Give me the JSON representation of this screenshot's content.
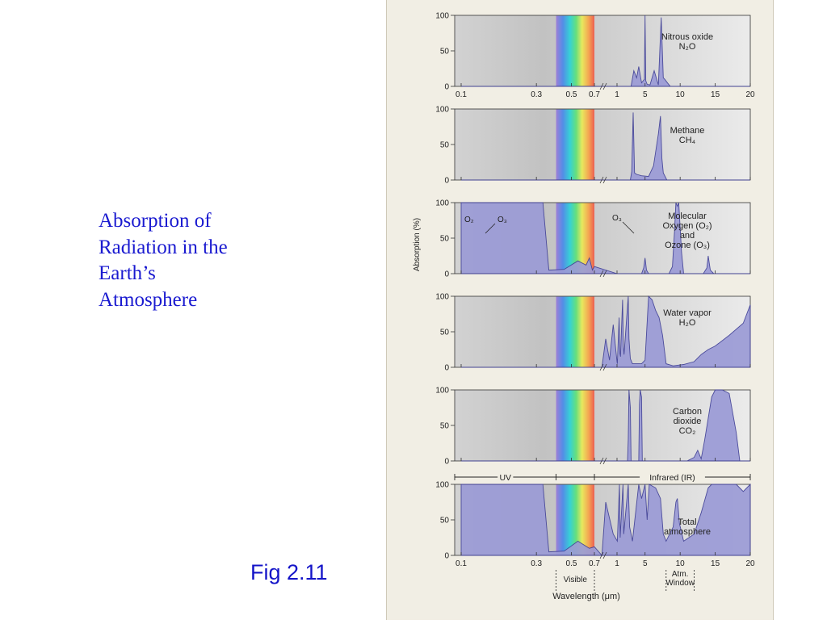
{
  "slide": {
    "title_lines": [
      "Absorption of",
      "Radiation in the",
      "Earth’s",
      "Atmosphere"
    ],
    "figure_label": "Fig 2.11"
  },
  "colors": {
    "title_text": "#1a1ad0",
    "absorption_fill": "#9b9bd6",
    "absorption_stroke": "#3f3f96",
    "panel_background": "#d4d4d4",
    "figure_background": "#f1eee4"
  },
  "chart_data": {
    "type": "area",
    "ylabel": "Absorption (%)",
    "xlabel": "Wavelength (μm)",
    "ylim": [
      0,
      100
    ],
    "yticks": [
      0,
      50,
      100
    ],
    "xticks": [
      "0.1",
      "0.3",
      "0.5",
      "0.7",
      "1",
      "5",
      "10",
      "15",
      "20"
    ],
    "x_axis_break_at": 0.7,
    "visible_band_um": [
      0.4,
      0.7
    ],
    "bands": [
      {
        "label": "UV",
        "from": 0.1,
        "to": 0.4
      },
      {
        "label": "Infrared (IR)",
        "from": 0.7,
        "to": 20
      }
    ],
    "bottom_annotations": [
      {
        "label": "Visible",
        "from": 0.4,
        "to": 0.7
      },
      {
        "label": "Atm.\nWindow",
        "from": 8,
        "to": 12
      }
    ],
    "panels": [
      {
        "label": "Nitrous oxide",
        "formula": "N₂O",
        "x": [
          0.1,
          0.7,
          1,
          3,
          3.4,
          3.8,
          4.1,
          4.5,
          4.9,
          5.0,
          5.1,
          5.3,
          5.7,
          6.3,
          6.9,
          7.3,
          7.6,
          7.8,
          8.1,
          8.6,
          20
        ],
        "y": [
          0,
          0,
          0,
          0,
          22,
          12,
          28,
          5,
          10,
          100,
          8,
          3,
          2,
          22,
          2,
          97,
          12,
          10,
          6,
          0,
          0
        ],
        "annotations": []
      },
      {
        "label": "Methane",
        "formula": "CH₄",
        "x": [
          0.1,
          0.7,
          1,
          2.9,
          3.1,
          3.3,
          3.5,
          3.8,
          4.5,
          5.5,
          6.2,
          6.9,
          7.2,
          7.4,
          7.6,
          8.1,
          20
        ],
        "y": [
          0,
          0,
          0,
          0,
          12,
          95,
          10,
          8,
          6,
          5,
          20,
          65,
          90,
          30,
          10,
          0,
          0
        ],
        "annotations": []
      },
      {
        "label": "Molecular\nOxygen (O₂)\nand\nOzone (O₃)",
        "formula": "",
        "x": [
          0.1,
          0.23,
          0.25,
          0.33,
          0.36,
          0.45,
          0.55,
          0.62,
          0.65,
          0.68,
          0.7,
          1,
          4.5,
          4.8,
          5.0,
          5.2,
          5.5,
          8.4,
          8.9,
          9.2,
          9.4,
          9.6,
          9.8,
          10.2,
          10.5,
          13.3,
          13.8,
          14.0,
          14.3,
          14.8,
          20
        ],
        "y": [
          100,
          100,
          100,
          100,
          5,
          6,
          18,
          12,
          22,
          5,
          10,
          0,
          0,
          8,
          22,
          5,
          0,
          0,
          10,
          60,
          100,
          95,
          100,
          30,
          0,
          0,
          8,
          25,
          5,
          0,
          0
        ],
        "annotations": [
          "O₂",
          "O₃",
          "O₃"
        ]
      },
      {
        "label": "Water vapor",
        "formula": "H₂O",
        "x": [
          0.1,
          0.7,
          0.8,
          0.85,
          0.9,
          0.95,
          1.0,
          1.05,
          1.3,
          1.4,
          1.5,
          1.8,
          1.9,
          2.0,
          2.6,
          2.7,
          2.9,
          3.2,
          4.5,
          5.0,
          5.5,
          6.0,
          6.5,
          7.0,
          7.5,
          8.0,
          9.0,
          10.5,
          12.0,
          13.0,
          14,
          15,
          17,
          19,
          20
        ],
        "y": [
          0,
          0,
          0,
          40,
          10,
          60,
          8,
          5,
          70,
          20,
          15,
          95,
          30,
          18,
          100,
          40,
          12,
          5,
          5,
          10,
          100,
          95,
          80,
          70,
          45,
          5,
          2,
          4,
          8,
          18,
          25,
          30,
          45,
          62,
          88
        ],
        "annotations": []
      },
      {
        "label": "Carbon\ndioxide",
        "formula": "CO₂",
        "x": [
          0.1,
          0.7,
          1,
          2.5,
          2.6,
          2.7,
          2.9,
          3.0,
          4.1,
          4.2,
          4.3,
          4.5,
          4.6,
          11,
          12,
          12.5,
          13,
          13.5,
          14,
          14.5,
          15,
          16,
          17,
          18,
          18.5,
          20
        ],
        "y": [
          0,
          0,
          0,
          0,
          30,
          100,
          75,
          0,
          0,
          80,
          100,
          90,
          0,
          0,
          5,
          15,
          3,
          30,
          60,
          90,
          100,
          100,
          95,
          40,
          0,
          0
        ],
        "annotations": []
      },
      {
        "label": "Total\natmosphere",
        "formula": "",
        "x": [
          0.1,
          0.23,
          0.25,
          0.33,
          0.36,
          0.45,
          0.55,
          0.65,
          0.7,
          0.8,
          0.85,
          0.95,
          1.05,
          1.35,
          1.45,
          1.85,
          1.95,
          2.6,
          2.8,
          3.2,
          4.1,
          4.5,
          5.0,
          5.3,
          5.6,
          6.5,
          7.2,
          7.6,
          8.0,
          9.0,
          9.4,
          9.6,
          9.9,
          10.5,
          12,
          13.0,
          14.0,
          14.5,
          15,
          17,
          18,
          19,
          20
        ],
        "y": [
          100,
          100,
          100,
          100,
          5,
          6,
          20,
          10,
          12,
          0,
          75,
          30,
          20,
          100,
          25,
          100,
          30,
          100,
          40,
          20,
          100,
          80,
          100,
          50,
          100,
          95,
          80,
          30,
          20,
          40,
          75,
          80,
          45,
          20,
          30,
          60,
          95,
          100,
          100,
          100,
          100,
          90,
          100
        ],
        "annotations": []
      }
    ]
  }
}
